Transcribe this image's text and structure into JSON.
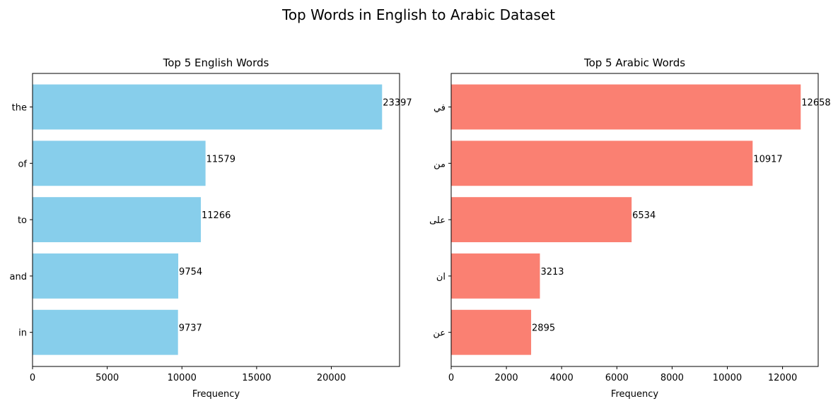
{
  "figure": {
    "suptitle": "Top Words in English to Arabic Dataset"
  },
  "chart_data": [
    {
      "type": "bar",
      "orientation": "horizontal",
      "title": "Top 5 English Words",
      "xlabel": "Frequency",
      "ylabel": "",
      "categories": [
        "the",
        "of",
        "to",
        "and",
        "in"
      ],
      "values": [
        23397,
        11579,
        11266,
        9754,
        9737
      ],
      "xlim": [
        0,
        24567
      ],
      "xticks": [
        0,
        5000,
        10000,
        15000,
        20000
      ],
      "color": "#87ceeb",
      "grid": false,
      "legend": "none"
    },
    {
      "type": "bar",
      "orientation": "horizontal",
      "title": "Top 5 Arabic Words",
      "xlabel": "Frequency",
      "ylabel": "",
      "categories": [
        "في",
        "من",
        "على",
        "ان",
        "عن"
      ],
      "values": [
        12658,
        10917,
        6534,
        3213,
        2895
      ],
      "xlim": [
        0,
        13291
      ],
      "xticks": [
        0,
        2000,
        4000,
        6000,
        8000,
        10000,
        12000
      ],
      "color": "#fa8072",
      "grid": false,
      "legend": "none"
    }
  ]
}
